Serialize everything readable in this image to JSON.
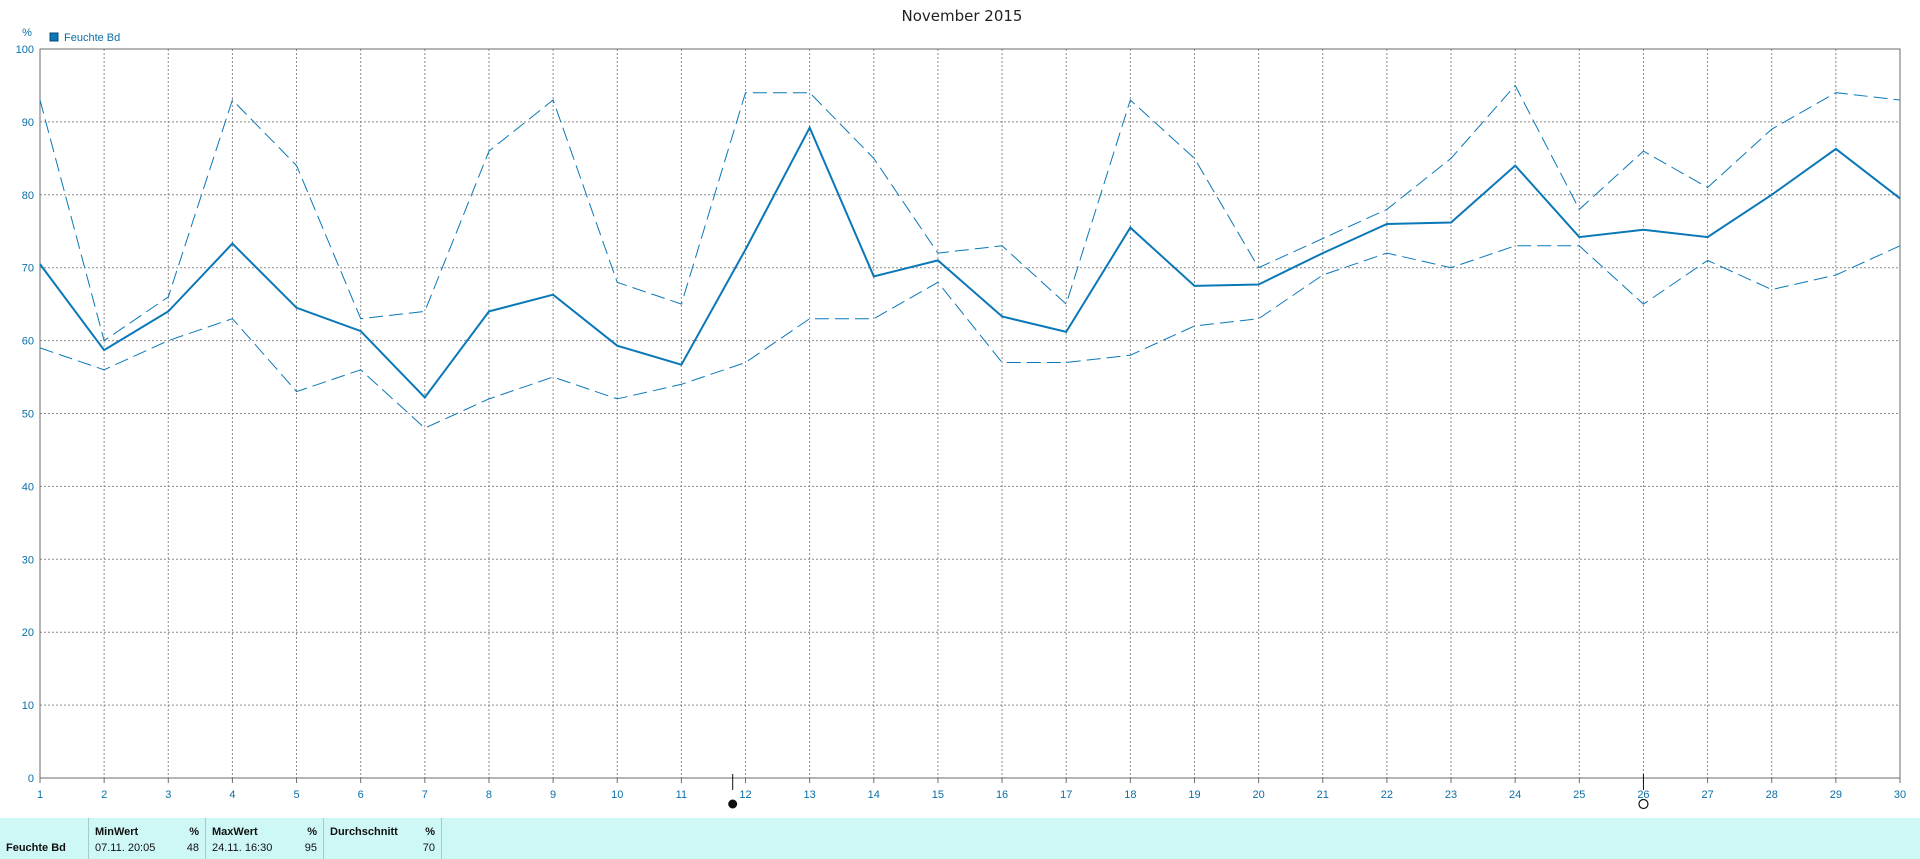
{
  "chart_data": {
    "type": "line",
    "title": "November 2015",
    "ylabel": "%",
    "xlabel": "",
    "ylim": [
      0,
      100
    ],
    "yticks": [
      0,
      10,
      20,
      30,
      40,
      50,
      60,
      70,
      80,
      90,
      100
    ],
    "xlim": [
      1,
      30
    ],
    "x": [
      1,
      2,
      3,
      4,
      5,
      6,
      7,
      8,
      9,
      10,
      11,
      12,
      13,
      14,
      15,
      16,
      17,
      18,
      19,
      20,
      21,
      22,
      23,
      24,
      25,
      26,
      27,
      28,
      29,
      30
    ],
    "grid": true,
    "legend_position": "top-left",
    "legend": [
      {
        "label": "Feuchte Bd",
        "color": "#0a78b8"
      }
    ],
    "series": [
      {
        "name": "Feuchte Bd",
        "style": "solid",
        "values": [
          70.5,
          58.7,
          64,
          73.3,
          64.5,
          61.3,
          52.2,
          64,
          66.3,
          59.3,
          56.7,
          72.5,
          89.2,
          68.8,
          71,
          63.3,
          61.2,
          75.5,
          67.5,
          67.7,
          72,
          76,
          76.2,
          84,
          74.2,
          75.2,
          74.2,
          80,
          86.3,
          79.5
        ]
      },
      {
        "style": "dashed",
        "values": [
          93,
          60,
          66,
          93,
          84,
          63,
          64,
          86,
          93,
          68,
          65,
          94,
          94,
          85,
          72,
          73,
          65,
          93,
          85,
          70,
          74,
          78,
          85,
          95,
          78,
          86,
          81,
          89,
          94,
          93
        ]
      },
      {
        "style": "dashed",
        "values": [
          59,
          56,
          60,
          63,
          53,
          56,
          48,
          52,
          55,
          52,
          54,
          57,
          63,
          63,
          68,
          57,
          57,
          58,
          62,
          63,
          69,
          72,
          70,
          73,
          73,
          65,
          71,
          67,
          69,
          73
        ]
      }
    ],
    "markers": [
      {
        "x": 11.8,
        "icon": "new-moon-icon"
      },
      {
        "x": 26,
        "icon": "full-moon-icon"
      }
    ],
    "line_color": "#0a78b8"
  },
  "stats": {
    "row_label": "Feuchte Bd",
    "min": {
      "header": "MinWert",
      "unit": "%",
      "when": "07.11.  20:05",
      "value": "48"
    },
    "max": {
      "header": "MaxWert",
      "unit": "%",
      "when": "24.11.  16:30",
      "value": "95"
    },
    "avg": {
      "header": "Durchschnitt",
      "unit": "%",
      "value": "70"
    }
  }
}
